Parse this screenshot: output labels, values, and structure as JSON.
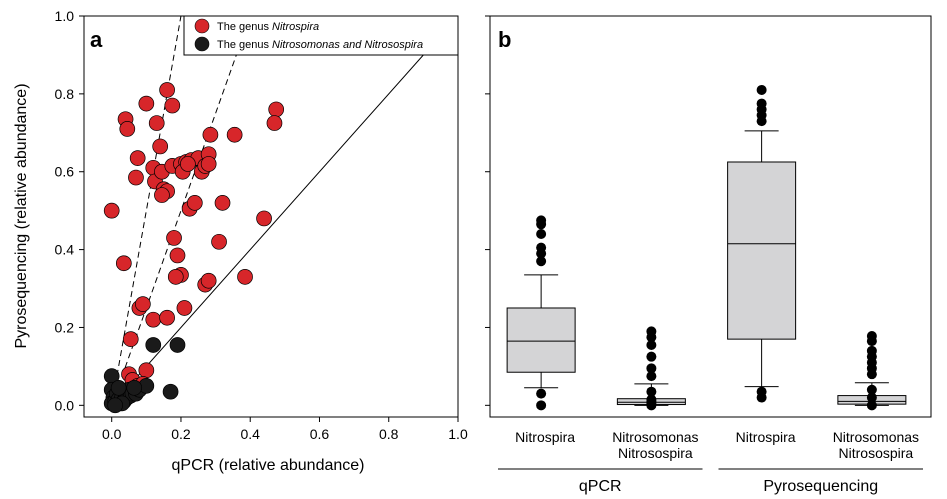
{
  "chart_data": [
    {
      "type": "scatter",
      "panel": "a",
      "xlabel": "qPCR (relative abundance)",
      "ylabel": "Pyrosequencing (relative abundance)",
      "xlim": [
        -0.08,
        1.0
      ],
      "ylim": [
        -0.03,
        1.0
      ],
      "xticks": [
        "0.0",
        "0.2",
        "0.4",
        "0.6",
        "0.8",
        "1.0"
      ],
      "yticks": [
        "0.0",
        "0.2",
        "0.4",
        "0.6",
        "0.8",
        "1.0"
      ],
      "legend_position": "top-right",
      "reference_lines": [
        {
          "style": "solid",
          "slope": 1
        },
        {
          "style": "dashed",
          "slope": 2.5
        },
        {
          "style": "dashed",
          "slope": 5
        }
      ],
      "series": [
        {
          "name": "The genus ",
          "name_italic": "Nitrospira",
          "color": "#d7262a",
          "points": [
            [
              0.0,
              0.5
            ],
            [
              0.04,
              0.735
            ],
            [
              0.045,
              0.71
            ],
            [
              0.035,
              0.365
            ],
            [
              0.055,
              0.17
            ],
            [
              0.075,
              0.635
            ],
            [
              0.07,
              0.585
            ],
            [
              0.08,
              0.25
            ],
            [
              0.09,
              0.26
            ],
            [
              0.1,
              0.775
            ],
            [
              0.12,
              0.61
            ],
            [
              0.13,
              0.725
            ],
            [
              0.125,
              0.575
            ],
            [
              0.14,
              0.665
            ],
            [
              0.145,
              0.6
            ],
            [
              0.16,
              0.81
            ],
            [
              0.175,
              0.77
            ],
            [
              0.15,
              0.555
            ],
            [
              0.16,
              0.55
            ],
            [
              0.175,
              0.615
            ],
            [
              0.2,
              0.62
            ],
            [
              0.215,
              0.625
            ],
            [
              0.23,
              0.63
            ],
            [
              0.25,
              0.635
            ],
            [
              0.26,
              0.6
            ],
            [
              0.27,
              0.615
            ],
            [
              0.28,
              0.645
            ],
            [
              0.28,
              0.62
            ],
            [
              0.285,
              0.695
            ],
            [
              0.355,
              0.695
            ],
            [
              0.205,
              0.6
            ],
            [
              0.22,
              0.62
            ],
            [
              0.18,
              0.43
            ],
            [
              0.19,
              0.385
            ],
            [
              0.2,
              0.335
            ],
            [
              0.185,
              0.33
            ],
            [
              0.225,
              0.505
            ],
            [
              0.24,
              0.52
            ],
            [
              0.32,
              0.52
            ],
            [
              0.31,
              0.42
            ],
            [
              0.27,
              0.31
            ],
            [
              0.28,
              0.32
            ],
            [
              0.21,
              0.25
            ],
            [
              0.12,
              0.22
            ],
            [
              0.16,
              0.225
            ],
            [
              0.1,
              0.09
            ],
            [
              0.05,
              0.08
            ],
            [
              0.06,
              0.065
            ],
            [
              0.075,
              0.05
            ],
            [
              0.09,
              0.055
            ],
            [
              0.44,
              0.48
            ],
            [
              0.385,
              0.33
            ],
            [
              0.475,
              0.76
            ],
            [
              0.47,
              0.725
            ],
            [
              0.145,
              0.54
            ]
          ]
        },
        {
          "name": "The genus ",
          "name_italic": "Nitrosomonas and Nitrosospira",
          "color": "#1a1a1a",
          "points": [
            [
              0.0,
              0.075
            ],
            [
              0.0,
              0.04
            ],
            [
              0.005,
              0.02
            ],
            [
              0.0,
              0.005
            ],
            [
              0.01,
              0.01
            ],
            [
              0.015,
              0.03
            ],
            [
              0.02,
              0.015
            ],
            [
              0.025,
              0.005
            ],
            [
              0.03,
              0.02
            ],
            [
              0.035,
              0.01
            ],
            [
              0.04,
              0.03
            ],
            [
              0.045,
              0.02
            ],
            [
              0.05,
              0.04
            ],
            [
              0.055,
              0.025
            ],
            [
              0.06,
              0.03
            ],
            [
              0.07,
              0.03
            ],
            [
              0.08,
              0.04
            ],
            [
              0.1,
              0.05
            ],
            [
              0.12,
              0.155
            ],
            [
              0.19,
              0.155
            ],
            [
              0.17,
              0.035
            ],
            [
              0.02,
              0.045
            ],
            [
              0.03,
              0.005
            ],
            [
              0.01,
              0.0
            ],
            [
              0.065,
              0.045
            ]
          ]
        }
      ]
    },
    {
      "type": "box",
      "panel": "b",
      "ylim": [
        -0.03,
        1.0
      ],
      "categories": [
        "Nitrospira",
        "Nitrosomonas\nNitrosospira",
        "Nitrospira",
        "Nitrosomonas\nNitrosospira"
      ],
      "category_lines": [
        [
          "Nitrospira"
        ],
        [
          "Nitrosomonas",
          "Nitrosospira"
        ],
        [
          "Nitrospira"
        ],
        [
          "Nitrosomonas",
          "Nitrosospira"
        ]
      ],
      "groups": [
        {
          "label": "qPCR",
          "members": [
            0,
            1
          ]
        },
        {
          "label": "Pyrosequencing",
          "members": [
            2,
            3
          ]
        }
      ],
      "fill_color": "#d4d4d6",
      "boxes": [
        {
          "whisker_low": 0.045,
          "q1": 0.085,
          "median": 0.165,
          "q3": 0.25,
          "whisker_high": 0.335,
          "outliers": [
            0.0,
            0.03,
            0.37,
            0.39,
            0.405,
            0.44,
            0.465,
            0.475
          ]
        },
        {
          "whisker_low": 0.0,
          "q1": 0.002,
          "median": 0.008,
          "q3": 0.017,
          "whisker_high": 0.055,
          "outliers": [
            0.0,
            0.005,
            0.01,
            0.015,
            0.035,
            0.075,
            0.095,
            0.125,
            0.155,
            0.175,
            0.19
          ]
        },
        {
          "whisker_low": 0.048,
          "q1": 0.17,
          "median": 0.415,
          "q3": 0.625,
          "whisker_high": 0.705,
          "outliers": [
            0.02,
            0.035,
            0.73,
            0.745,
            0.76,
            0.775,
            0.81
          ]
        },
        {
          "whisker_low": 0.0,
          "q1": 0.003,
          "median": 0.01,
          "q3": 0.025,
          "whisker_high": 0.058,
          "outliers": [
            0.0,
            0.02,
            0.04,
            0.08,
            0.095,
            0.11,
            0.125,
            0.14,
            0.165,
            0.178
          ]
        }
      ],
      "xlabel": "",
      "ylabel": "",
      "title": ""
    }
  ]
}
